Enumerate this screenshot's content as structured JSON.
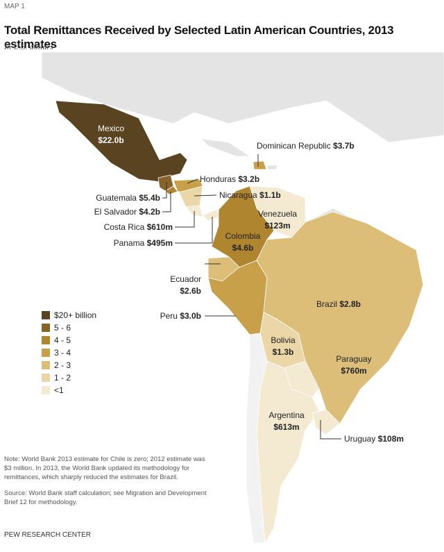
{
  "header": {
    "label": "MAP 1",
    "title": "Total Remittances Received by Selected Latin American Countries, 2013 estimates",
    "subtitle": "In U.S. dollars"
  },
  "legend": [
    {
      "label": "$20+ billion",
      "color": "#5a4320"
    },
    {
      "label": "5 - 6",
      "color": "#86642a"
    },
    {
      "label": "4 - 5",
      "color": "#b08530"
    },
    {
      "label": "3 - 4",
      "color": "#c9a04a"
    },
    {
      "label": "2 - 3",
      "color": "#dcbe78"
    },
    {
      "label": "1 - 2",
      "color": "#ead6a6"
    },
    {
      "label": "<1",
      "color": "#f4ead2"
    }
  ],
  "countries": [
    {
      "name": "Mexico",
      "value": "$22.0b"
    },
    {
      "name": "Dominican Republic",
      "value": "$3.7b"
    },
    {
      "name": "Honduras",
      "value": "$3.2b"
    },
    {
      "name": "Nicaragua",
      "value": "$1.1b"
    },
    {
      "name": "Guatemala",
      "value": "$5.4b"
    },
    {
      "name": "El Salvador",
      "value": "$4.2b"
    },
    {
      "name": "Costa Rica",
      "value": "$610m"
    },
    {
      "name": "Panama",
      "value": "$495m"
    },
    {
      "name": "Venezuela",
      "value": "$123m"
    },
    {
      "name": "Colombia",
      "value": "$4.6b"
    },
    {
      "name": "Ecuador",
      "value": "$2.6b"
    },
    {
      "name": "Peru",
      "value": "$3.0b"
    },
    {
      "name": "Brazil",
      "value": "$2.8b"
    },
    {
      "name": "Bolivia",
      "value": "$1.3b"
    },
    {
      "name": "Paraguay",
      "value": "$760m"
    },
    {
      "name": "Argentina",
      "value": "$613m"
    },
    {
      "name": "Uruguay",
      "value": "$108m"
    }
  ],
  "notes": {
    "note": "Note: World Bank 2013 estimate for Chile is zero; 2012 estimate was $3 million. In 2013, the World Bank updated its methodology for remittances, which sharply reduced the estimates for Brazil.",
    "source": "Source: World Bank staff calculation; see Migration and Development Brief 12 for methodology."
  },
  "footer": "PEW RESEARCH CENTER"
}
